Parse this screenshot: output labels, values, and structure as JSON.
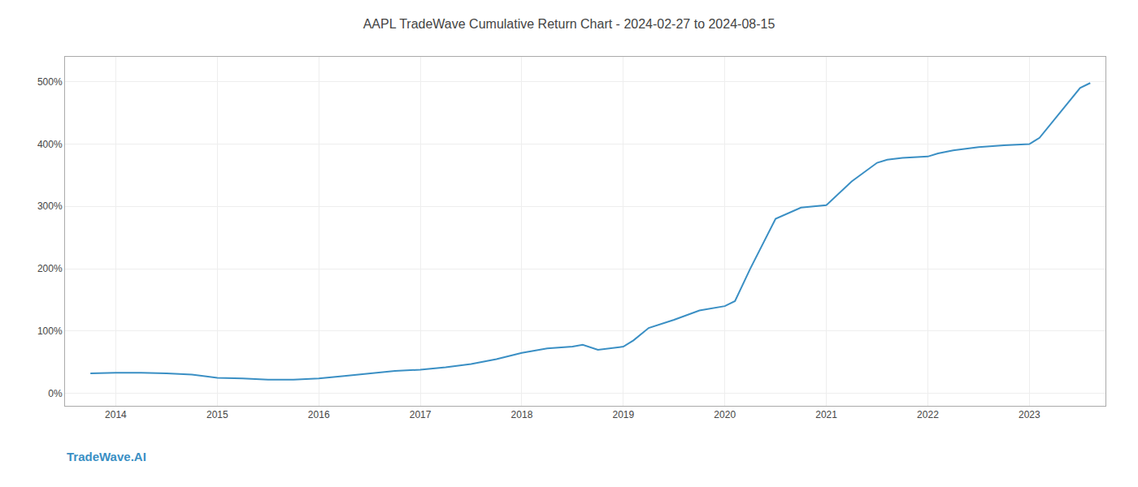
{
  "chart_data": {
    "type": "line",
    "title": "AAPL TradeWave Cumulative Return Chart - 2024-02-27 to 2024-08-15",
    "annotations": [
      "TradeWave.AI"
    ],
    "x": [
      2013.75,
      2014.0,
      2014.25,
      2014.5,
      2014.75,
      2015.0,
      2015.25,
      2015.5,
      2015.75,
      2016.0,
      2016.25,
      2016.5,
      2016.75,
      2017.0,
      2017.25,
      2017.5,
      2017.75,
      2018.0,
      2018.25,
      2018.5,
      2018.6,
      2018.75,
      2019.0,
      2019.1,
      2019.25,
      2019.5,
      2019.75,
      2020.0,
      2020.1,
      2020.25,
      2020.5,
      2020.75,
      2021.0,
      2021.25,
      2021.5,
      2021.6,
      2021.75,
      2022.0,
      2022.1,
      2022.25,
      2022.5,
      2022.75,
      2023.0,
      2023.1,
      2023.25,
      2023.5,
      2023.6
    ],
    "values": [
      32,
      33,
      33,
      32,
      30,
      25,
      24,
      22,
      22,
      24,
      28,
      32,
      36,
      38,
      42,
      47,
      55,
      65,
      72,
      75,
      78,
      70,
      75,
      85,
      105,
      118,
      133,
      140,
      148,
      200,
      280,
      298,
      302,
      340,
      370,
      375,
      378,
      380,
      385,
      390,
      395,
      398,
      400,
      410,
      440,
      490,
      498
    ],
    "color": "#3a8fc4",
    "xlim": [
      2013.5,
      2023.75
    ],
    "xticks": [
      2014,
      2015,
      2016,
      2017,
      2018,
      2019,
      2020,
      2021,
      2022,
      2023
    ],
    "ylim": [
      -20,
      540
    ],
    "yticks": [
      {
        "value": 0,
        "label": "0%"
      },
      {
        "value": 100,
        "label": "100%"
      },
      {
        "value": 200,
        "label": "200%"
      },
      {
        "value": 300,
        "label": "300%"
      },
      {
        "value": 400,
        "label": "400%"
      },
      {
        "value": 500,
        "label": "500%"
      }
    ],
    "grid": true
  }
}
